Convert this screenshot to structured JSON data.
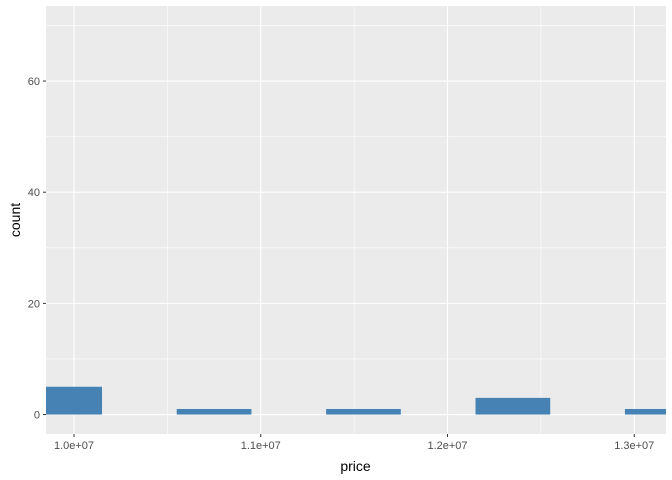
{
  "chart_data": {
    "type": "bar",
    "title": "",
    "xlabel": "price",
    "ylabel": "count",
    "bins": [
      {
        "start": 9850000,
        "end": 10150000,
        "count": 5
      },
      {
        "start": 10550000,
        "end": 10950000,
        "count": 1
      },
      {
        "start": 11350000,
        "end": 11750000,
        "count": 1
      },
      {
        "start": 12150000,
        "end": 12550000,
        "count": 3
      },
      {
        "start": 12950000,
        "end": 13350000,
        "count": 1
      }
    ],
    "xlim": [
      9850000,
      13170000
    ],
    "ylim": [
      -3.5,
      73.5
    ],
    "x_ticks": [
      {
        "value": 10000000,
        "label": "1.0e+07"
      },
      {
        "value": 11000000,
        "label": "1.1e+07"
      },
      {
        "value": 12000000,
        "label": "1.2e+07"
      },
      {
        "value": 13000000,
        "label": "1.3e+07"
      }
    ],
    "x_minor_ticks": [
      10500000,
      11500000,
      12500000
    ],
    "y_ticks": [
      {
        "value": 0,
        "label": "0"
      },
      {
        "value": 20,
        "label": "20"
      },
      {
        "value": 40,
        "label": "40"
      },
      {
        "value": 60,
        "label": "60"
      }
    ],
    "y_minor_ticks": [
      10,
      30,
      50,
      70
    ],
    "grid": true,
    "legend": "none",
    "colors": {
      "bar": "#4682b4",
      "panel": "#ebebeb",
      "grid": "#ffffff",
      "tick": "#333333"
    }
  }
}
